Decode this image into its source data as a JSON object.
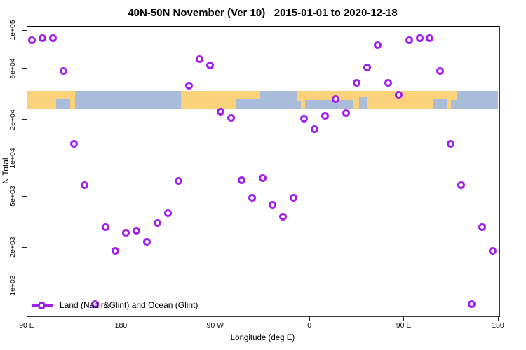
{
  "title": "40N-50N November (Ver 10)   2015-01-01 to 2020-12-18",
  "colors": {
    "marker": "#A020F0",
    "land": "#FAD27C",
    "ocean": "#A9BCD9",
    "axis": "#000000"
  },
  "legend": {
    "label": "Land (Nadir&Glint) and Ocean (Glint)"
  },
  "chart_data": {
    "type": "scatter",
    "title": "40N-50N November (Ver 10)   2015-01-01 to 2020-12-18",
    "xlabel": "Longitude (deg E)",
    "ylabel": "N Total",
    "y_scale": "log",
    "ylim": [
      600,
      110000
    ],
    "x_range_degE": [
      90,
      540
    ],
    "grid": "off",
    "legend_position": "bottom-left",
    "x_ticks": [
      {
        "lon": 90,
        "label": "90 E"
      },
      {
        "lon": 180,
        "label": "180"
      },
      {
        "lon": 270,
        "label": "90 W"
      },
      {
        "lon": 360,
        "label": "0"
      },
      {
        "lon": 450,
        "label": "90 E"
      },
      {
        "lon": 540,
        "label": "180"
      }
    ],
    "y_ticks": [
      {
        "value": 100000,
        "label": "1e+05"
      },
      {
        "value": 50000,
        "label": "5e+04"
      },
      {
        "value": 20000,
        "label": "2e+04"
      },
      {
        "value": 10000,
        "label": "1e+04"
      },
      {
        "value": 5000,
        "label": "5e+03"
      },
      {
        "value": 2000,
        "label": "2e+03"
      },
      {
        "value": 1000,
        "label": "1e+03"
      }
    ],
    "points": [
      {
        "lon": 95,
        "n": 83000
      },
      {
        "lon": 105,
        "n": 86000
      },
      {
        "lon": 115,
        "n": 86500
      },
      {
        "lon": 125,
        "n": 48000
      },
      {
        "lon": 135,
        "n": 12800
      },
      {
        "lon": 145,
        "n": 6100
      },
      {
        "lon": 155,
        "n": 720
      },
      {
        "lon": 165,
        "n": 2850
      },
      {
        "lon": 175,
        "n": 1870
      },
      {
        "lon": 185,
        "n": 2580
      },
      {
        "lon": 195,
        "n": 2680
      },
      {
        "lon": 205,
        "n": 2200
      },
      {
        "lon": 215,
        "n": 3100
      },
      {
        "lon": 225,
        "n": 3670
      },
      {
        "lon": 235,
        "n": 6600
      },
      {
        "lon": 245,
        "n": 36500
      },
      {
        "lon": 255,
        "n": 59500
      },
      {
        "lon": 265,
        "n": 53000
      },
      {
        "lon": 275,
        "n": 23000
      },
      {
        "lon": 285,
        "n": 20400
      },
      {
        "lon": 295,
        "n": 6700
      },
      {
        "lon": 305,
        "n": 4900
      },
      {
        "lon": 315,
        "n": 6900
      },
      {
        "lon": 325,
        "n": 4300
      },
      {
        "lon": 335,
        "n": 3450
      },
      {
        "lon": 345,
        "n": 4850
      },
      {
        "lon": 355,
        "n": 20200
      },
      {
        "lon": 365,
        "n": 16700
      },
      {
        "lon": 375,
        "n": 21200
      },
      {
        "lon": 385,
        "n": 29000
      },
      {
        "lon": 395,
        "n": 22500
      },
      {
        "lon": 405,
        "n": 38400
      },
      {
        "lon": 415,
        "n": 50600
      },
      {
        "lon": 425,
        "n": 76700
      },
      {
        "lon": 435,
        "n": 38400
      },
      {
        "lon": 445,
        "n": 31000
      },
      {
        "lon": 455,
        "n": 83000
      },
      {
        "lon": 465,
        "n": 86000
      },
      {
        "lon": 475,
        "n": 86500
      },
      {
        "lon": 485,
        "n": 48000
      },
      {
        "lon": 495,
        "n": 12800
      },
      {
        "lon": 505,
        "n": 6100
      },
      {
        "lon": 515,
        "n": 720
      },
      {
        "lon": 525,
        "n": 2850
      },
      {
        "lon": 535,
        "n": 1870
      }
    ],
    "map_band": {
      "description_visible": false,
      "ocean": {
        "lon0": 90,
        "lon1": 540
      },
      "land_rects": [
        {
          "lon0": 90,
          "lon1": 136,
          "t": 0,
          "b": 1
        },
        {
          "lon0": 237,
          "lon1": 289.5,
          "t": 0,
          "b": 1
        },
        {
          "lon0": 289.5,
          "lon1": 313,
          "t": 0,
          "b": 0.45
        },
        {
          "lon0": 348.5,
          "lon1": 352,
          "t": 0,
          "b": 0.55
        },
        {
          "lon0": 352,
          "lon1": 495,
          "t": 0,
          "b": 1
        },
        {
          "lon0": 495,
          "lon1": 501,
          "t": 0,
          "b": 0.5
        }
      ],
      "ocean_patches": [
        {
          "lon0": 118,
          "lon1": 131.5,
          "t": 0.42,
          "b": 1
        },
        {
          "lon0": 356,
          "lon1": 402,
          "t": 0.5,
          "b": 1
        },
        {
          "lon0": 407.5,
          "lon1": 415.5,
          "t": 0.3,
          "b": 1
        },
        {
          "lon0": 478,
          "lon1": 491.5,
          "t": 0.42,
          "b": 1
        }
      ]
    }
  }
}
